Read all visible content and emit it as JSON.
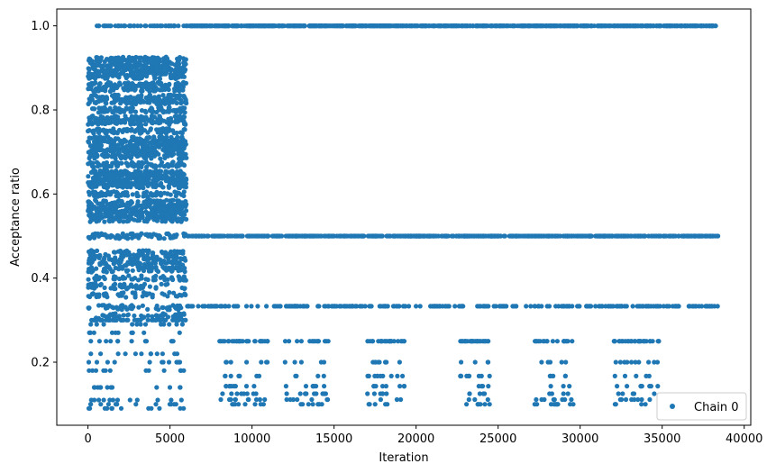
{
  "chart_data": {
    "type": "scatter",
    "title": "",
    "xlabel": "Iteration",
    "ylabel": "Acceptance ratio",
    "xlim": [
      -1900,
      40400
    ],
    "ylim": [
      0.05,
      1.04
    ],
    "xticks": [
      0,
      5000,
      10000,
      15000,
      20000,
      25000,
      30000,
      35000,
      40000
    ],
    "xtick_labels": [
      "0",
      "5000",
      "10000",
      "15000",
      "20000",
      "25000",
      "30000",
      "35000",
      "40000"
    ],
    "yticks": [
      0.2,
      0.4,
      0.6,
      0.8,
      1.0
    ],
    "ytick_labels": [
      "0.2",
      "0.4",
      "0.6",
      "0.8",
      "1.0"
    ],
    "grid": false,
    "legend": {
      "position": "lower-right",
      "entries": [
        "Chain 0"
      ]
    },
    "marker_color": "#1f77b4",
    "series": [
      {
        "name": "Chain 0",
        "description_of_levels": "dense points",
        "segments": [
          {
            "x_range": [
              0,
              6000
            ],
            "y_levels": [
              1.0,
              0.92,
              0.91,
              0.9,
              0.89,
              0.88,
              0.86,
              0.85,
              0.83,
              0.82,
              0.8,
              0.78,
              0.77,
              0.75,
              0.73,
              0.72,
              0.71,
              0.7,
              0.69,
              0.67,
              0.65,
              0.64,
              0.63,
              0.62,
              0.6,
              0.58,
              0.57,
              0.56,
              0.55,
              0.54,
              0.5,
              0.46,
              0.45,
              0.44,
              0.43,
              0.42,
              0.4,
              0.38,
              0.36,
              0.33,
              0.31,
              0.3,
              0.29,
              0.27,
              0.25,
              0.22,
              0.2,
              0.18,
              0.14,
              0.11,
              0.1,
              0.09
            ]
          },
          {
            "x_range": [
              6000,
              38400
            ],
            "y_levels": [
              1.0,
              0.5,
              0.333,
              0.25,
              0.2,
              0.167,
              0.143,
              0.125,
              0.111,
              0.1
            ]
          }
        ]
      }
    ]
  }
}
